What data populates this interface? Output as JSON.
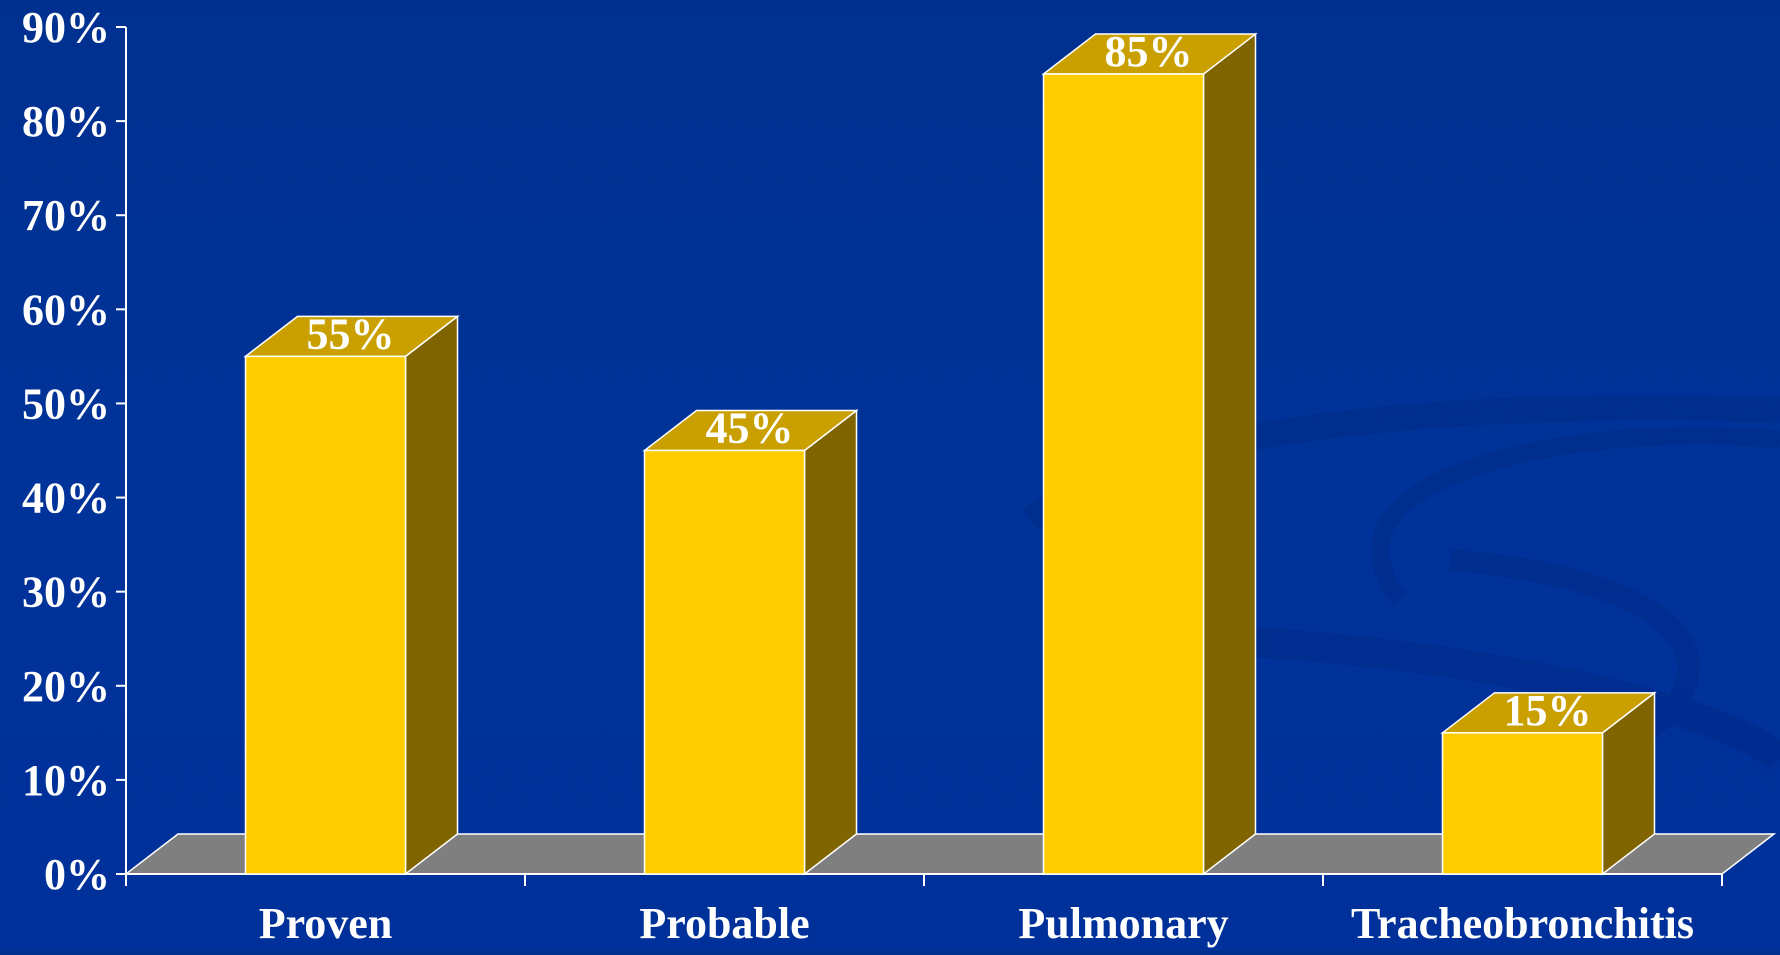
{
  "chart_data": {
    "type": "bar",
    "categories": [
      "Proven",
      "Probable",
      "Pulmonary",
      "Tracheobronchitis"
    ],
    "values": [
      55,
      45,
      85,
      15
    ],
    "data_labels": [
      "55%",
      "45%",
      "85%",
      "15%"
    ],
    "ylim": [
      0,
      90
    ],
    "yticks": [
      0,
      10,
      20,
      30,
      40,
      50,
      60,
      70,
      80,
      90
    ],
    "ytick_labels": [
      "0%",
      "10%",
      "20%",
      "30%",
      "40%",
      "50%",
      "60%",
      "70%",
      "80%",
      "90%"
    ],
    "title": "",
    "xlabel": "",
    "ylabel": "",
    "grid": false,
    "legend": "none",
    "style": "3d-column"
  },
  "colors": {
    "background": "#003399",
    "bar_front": "#ffcc00",
    "bar_top": "#c9a000",
    "bar_side": "#806400",
    "floor": "#7f7f7f",
    "axis": "#ffffff",
    "text": "#ffffff"
  }
}
